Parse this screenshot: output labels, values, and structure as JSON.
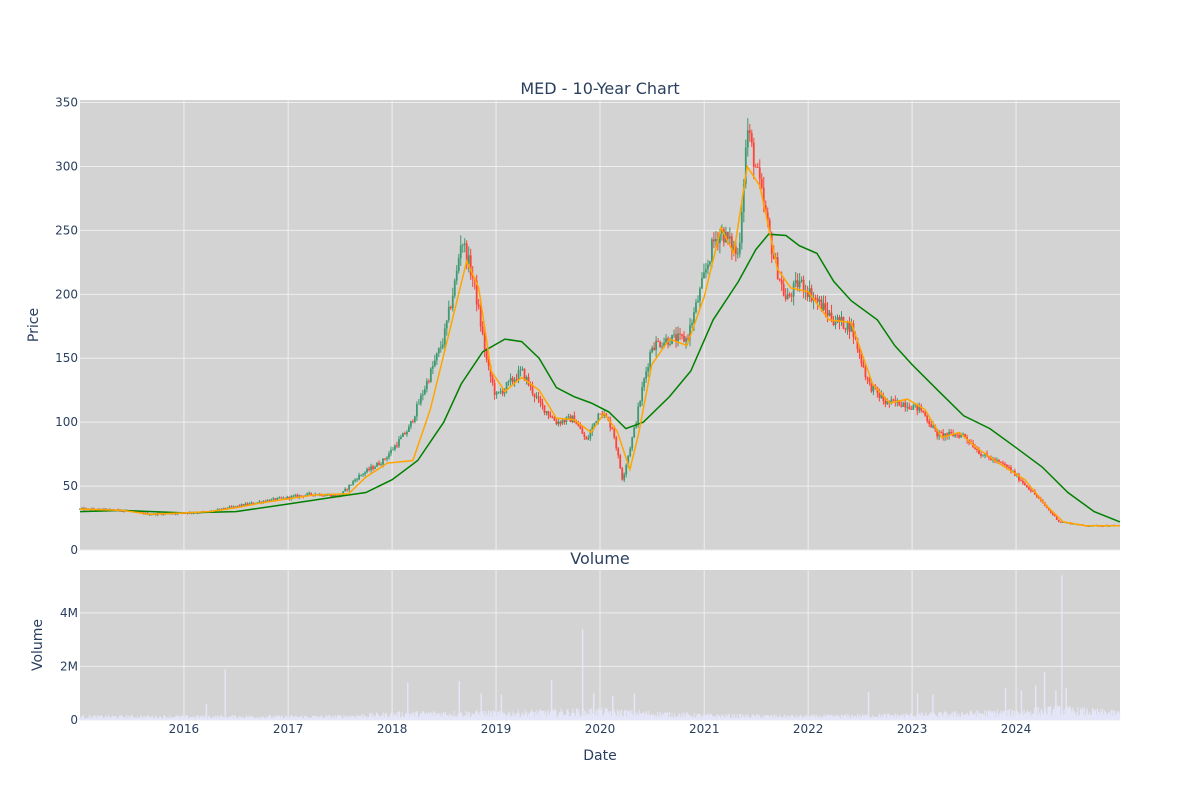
{
  "chart_data": [
    {
      "type": "candlestick",
      "title": "MED - 10-Year Chart",
      "ylabel": "Price",
      "xlabel": "",
      "ylim": [
        0,
        352
      ],
      "xlim": [
        "2015-01-01",
        "2024-12-31"
      ],
      "yticks": [
        0,
        50,
        100,
        150,
        200,
        250,
        300,
        350
      ],
      "xticks": [
        "2016",
        "2017",
        "2018",
        "2019",
        "2020",
        "2021",
        "2022",
        "2023",
        "2024"
      ],
      "grid": true,
      "legend": "none",
      "colors": {
        "plot_bg": "#d3d3d3",
        "grid": "#eeeeee",
        "up": "#3d9970",
        "down": "#ff4136",
        "ma_short": "#ffa500",
        "ma_long": "#008000",
        "text": "#2a3f5f"
      },
      "close_points": [
        [
          "2015-01-01",
          32
        ],
        [
          "2015-06-01",
          31
        ],
        [
          "2015-09-01",
          28
        ],
        [
          "2016-01-01",
          29
        ],
        [
          "2016-04-01",
          30
        ],
        [
          "2016-07-01",
          34
        ],
        [
          "2016-10-01",
          38
        ],
        [
          "2017-01-01",
          41
        ],
        [
          "2017-04-01",
          44
        ],
        [
          "2017-07-01",
          42
        ],
        [
          "2017-09-01",
          57
        ],
        [
          "2017-12-01",
          70
        ],
        [
          "2018-03-01",
          95
        ],
        [
          "2018-05-01",
          130
        ],
        [
          "2018-07-01",
          165
        ],
        [
          "2018-08-15",
          215
        ],
        [
          "2018-09-01",
          245
        ],
        [
          "2018-10-15",
          210
        ],
        [
          "2018-12-01",
          145
        ],
        [
          "2019-01-01",
          120
        ],
        [
          "2019-04-01",
          140
        ],
        [
          "2019-06-01",
          115
        ],
        [
          "2019-08-01",
          100
        ],
        [
          "2019-10-01",
          103
        ],
        [
          "2019-11-15",
          85
        ],
        [
          "2020-01-01",
          110
        ],
        [
          "2020-02-15",
          95
        ],
        [
          "2020-03-20",
          55
        ],
        [
          "2020-05-01",
          95
        ],
        [
          "2020-06-01",
          130
        ],
        [
          "2020-07-01",
          160
        ],
        [
          "2020-09-01",
          165
        ],
        [
          "2020-11-01",
          165
        ],
        [
          "2020-12-15",
          200
        ],
        [
          "2021-02-01",
          240
        ],
        [
          "2021-03-01",
          250
        ],
        [
          "2021-05-01",
          230
        ],
        [
          "2021-06-01",
          330
        ],
        [
          "2021-07-15",
          285
        ],
        [
          "2021-09-01",
          230
        ],
        [
          "2021-10-15",
          195
        ],
        [
          "2021-12-01",
          210
        ],
        [
          "2022-02-01",
          195
        ],
        [
          "2022-04-01",
          180
        ],
        [
          "2022-06-01",
          175
        ],
        [
          "2022-08-01",
          130
        ],
        [
          "2022-10-01",
          115
        ],
        [
          "2022-12-01",
          115
        ],
        [
          "2023-02-01",
          110
        ],
        [
          "2023-04-01",
          90
        ],
        [
          "2023-07-01",
          90
        ],
        [
          "2023-09-01",
          75
        ],
        [
          "2023-12-01",
          65
        ],
        [
          "2024-03-01",
          45
        ],
        [
          "2024-06-01",
          22
        ],
        [
          "2024-09-01",
          19
        ],
        [
          "2024-12-31",
          19
        ]
      ],
      "ma_short_points": [
        [
          "2015-01-01",
          32
        ],
        [
          "2015-06-01",
          31
        ],
        [
          "2015-09-01",
          28
        ],
        [
          "2016-01-01",
          29
        ],
        [
          "2016-04-01",
          30
        ],
        [
          "2016-07-01",
          33
        ],
        [
          "2016-10-01",
          37
        ],
        [
          "2017-01-01",
          40
        ],
        [
          "2017-04-01",
          43
        ],
        [
          "2017-08-01",
          44
        ],
        [
          "2017-10-01",
          57
        ],
        [
          "2017-12-15",
          68
        ],
        [
          "2018-03-15",
          70
        ],
        [
          "2018-05-15",
          110
        ],
        [
          "2018-07-15",
          165
        ],
        [
          "2018-09-20",
          226
        ],
        [
          "2018-11-01",
          205
        ],
        [
          "2018-12-15",
          140
        ],
        [
          "2019-02-01",
          124
        ],
        [
          "2019-04-01",
          135
        ],
        [
          "2019-06-01",
          125
        ],
        [
          "2019-08-01",
          103
        ],
        [
          "2019-10-01",
          102
        ],
        [
          "2019-12-01",
          92
        ],
        [
          "2020-01-15",
          107
        ],
        [
          "2020-03-01",
          93
        ],
        [
          "2020-04-15",
          63
        ],
        [
          "2020-05-15",
          90
        ],
        [
          "2020-07-01",
          145
        ],
        [
          "2020-09-01",
          165
        ],
        [
          "2020-11-01",
          160
        ],
        [
          "2021-01-01",
          198
        ],
        [
          "2021-03-01",
          252
        ],
        [
          "2021-04-15",
          232
        ],
        [
          "2021-06-01",
          300
        ],
        [
          "2021-07-15",
          285
        ],
        [
          "2021-09-15",
          220
        ],
        [
          "2021-11-01",
          205
        ],
        [
          "2022-01-01",
          202
        ],
        [
          "2022-03-15",
          180
        ],
        [
          "2022-06-01",
          178
        ],
        [
          "2022-08-15",
          130
        ],
        [
          "2022-10-15",
          115
        ],
        [
          "2022-12-15",
          118
        ],
        [
          "2023-02-15",
          110
        ],
        [
          "2023-04-15",
          88
        ],
        [
          "2023-06-15",
          92
        ],
        [
          "2023-08-15",
          80
        ],
        [
          "2023-11-01",
          68
        ],
        [
          "2024-02-01",
          55
        ],
        [
          "2024-04-15",
          35
        ],
        [
          "2024-06-15",
          22
        ],
        [
          "2024-09-01",
          19
        ],
        [
          "2024-12-31",
          19
        ]
      ],
      "ma_long_points": [
        [
          "2015-01-01",
          30
        ],
        [
          "2015-06-01",
          31
        ],
        [
          "2016-01-01",
          29
        ],
        [
          "2016-07-01",
          30
        ],
        [
          "2017-01-01",
          36
        ],
        [
          "2017-07-01",
          42
        ],
        [
          "2017-10-01",
          45
        ],
        [
          "2018-01-01",
          55
        ],
        [
          "2018-04-01",
          70
        ],
        [
          "2018-07-01",
          100
        ],
        [
          "2018-09-01",
          130
        ],
        [
          "2018-11-15",
          155
        ],
        [
          "2019-02-01",
          165
        ],
        [
          "2019-04-01",
          163
        ],
        [
          "2019-06-01",
          150
        ],
        [
          "2019-08-01",
          127
        ],
        [
          "2019-10-01",
          120
        ],
        [
          "2019-12-01",
          115
        ],
        [
          "2020-02-01",
          108
        ],
        [
          "2020-04-01",
          95
        ],
        [
          "2020-06-01",
          100
        ],
        [
          "2020-09-01",
          120
        ],
        [
          "2020-11-15",
          140
        ],
        [
          "2021-02-01",
          180
        ],
        [
          "2021-05-01",
          210
        ],
        [
          "2021-07-01",
          235
        ],
        [
          "2021-08-15",
          247
        ],
        [
          "2021-10-15",
          246
        ],
        [
          "2021-12-01",
          238
        ],
        [
          "2022-02-01",
          232
        ],
        [
          "2022-04-01",
          210
        ],
        [
          "2022-06-01",
          195
        ],
        [
          "2022-09-01",
          180
        ],
        [
          "2022-11-01",
          160
        ],
        [
          "2023-01-01",
          145
        ],
        [
          "2023-04-01",
          125
        ],
        [
          "2023-07-01",
          105
        ],
        [
          "2023-10-01",
          95
        ],
        [
          "2024-01-01",
          80
        ],
        [
          "2024-04-01",
          65
        ],
        [
          "2024-07-01",
          45
        ],
        [
          "2024-10-01",
          30
        ],
        [
          "2024-12-31",
          22
        ]
      ]
    },
    {
      "type": "bar",
      "title": "Volume",
      "ylabel": "Volume",
      "xlabel": "Date",
      "ylim": [
        0,
        5600000
      ],
      "yticks": [
        0,
        2000000,
        4000000
      ],
      "ytick_labels": [
        "0",
        "2M",
        "4M"
      ],
      "xticks": [
        "2016",
        "2017",
        "2018",
        "2019",
        "2020",
        "2021",
        "2022",
        "2023",
        "2024"
      ],
      "grid": true,
      "color": "#e6e6fa",
      "spikes": [
        [
          "2016-05-25",
          1900000
        ],
        [
          "2016-03-20",
          600000
        ],
        [
          "2018-02-25",
          1400000
        ],
        [
          "2018-08-25",
          1450000
        ],
        [
          "2018-11-10",
          1000000
        ],
        [
          "2019-01-20",
          950000
        ],
        [
          "2019-07-15",
          1500000
        ],
        [
          "2019-11-01",
          3400000
        ],
        [
          "2019-12-10",
          1000000
        ],
        [
          "2020-02-15",
          900000
        ],
        [
          "2020-05-01",
          1000000
        ],
        [
          "2022-08-01",
          1050000
        ],
        [
          "2023-01-20",
          1000000
        ],
        [
          "2023-03-15",
          950000
        ],
        [
          "2023-11-25",
          1200000
        ],
        [
          "2024-01-20",
          1100000
        ],
        [
          "2024-03-10",
          1300000
        ],
        [
          "2024-04-10",
          1800000
        ],
        [
          "2024-05-20",
          1100000
        ],
        [
          "2024-06-10",
          5400000
        ],
        [
          "2024-06-25",
          1200000
        ]
      ],
      "baseline_points": [
        [
          "2015-01-01",
          150000
        ],
        [
          "2016-01-01",
          150000
        ],
        [
          "2017-06-01",
          150000
        ],
        [
          "2018-03-01",
          280000
        ],
        [
          "2019-01-01",
          300000
        ],
        [
          "2020-01-01",
          380000
        ],
        [
          "2020-06-01",
          300000
        ],
        [
          "2021-01-01",
          200000
        ],
        [
          "2022-01-01",
          160000
        ],
        [
          "2023-01-01",
          220000
        ],
        [
          "2024-01-01",
          350000
        ],
        [
          "2024-06-01",
          450000
        ],
        [
          "2024-12-31",
          300000
        ]
      ]
    }
  ]
}
